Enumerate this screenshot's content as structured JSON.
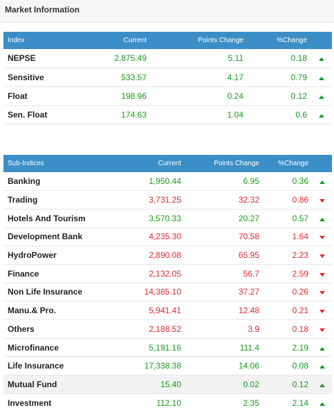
{
  "header": {
    "title": "Market Information"
  },
  "index_table": {
    "columns": [
      "Index",
      "Current",
      "Points Change",
      "%Change"
    ],
    "rows": [
      {
        "name": "NEPSE",
        "current": "2,875.49",
        "points": "5.11",
        "pct": "0.18",
        "direction": "up"
      },
      {
        "name": "Sensitive",
        "current": "533.57",
        "points": "4.17",
        "pct": "0.79",
        "direction": "up"
      },
      {
        "name": "Float",
        "current": "198.96",
        "points": "0.24",
        "pct": "0.12",
        "direction": "up"
      },
      {
        "name": "Sen. Float",
        "current": "174.63",
        "points": "1.04",
        "pct": "0.6",
        "direction": "up"
      }
    ]
  },
  "subindex_table": {
    "columns": [
      "Sub-Indices",
      "Current",
      "Points Change",
      "%Change"
    ],
    "rows": [
      {
        "name": "Banking",
        "current": "1,950.44",
        "points": "6.95",
        "pct": "0.36",
        "direction": "up"
      },
      {
        "name": "Trading",
        "current": "3,731.25",
        "points": "32.32",
        "pct": "0.86",
        "direction": "down"
      },
      {
        "name": "Hotels And Tourism",
        "current": "3,570.33",
        "points": "20.27",
        "pct": "0.57",
        "direction": "up"
      },
      {
        "name": "Development Bank",
        "current": "4,235.30",
        "points": "70.58",
        "pct": "1.64",
        "direction": "down"
      },
      {
        "name": "HydroPower",
        "current": "2,890.08",
        "points": "65.95",
        "pct": "2.23",
        "direction": "down"
      },
      {
        "name": "Finance",
        "current": "2,132.05",
        "points": "56.7",
        "pct": "2.59",
        "direction": "down"
      },
      {
        "name": "Non Life Insurance",
        "current": "14,385.10",
        "points": "37.27",
        "pct": "0.26",
        "direction": "down"
      },
      {
        "name": "Manu.& Pro.",
        "current": "5,941.41",
        "points": "12.48",
        "pct": "0.21",
        "direction": "down"
      },
      {
        "name": "Others",
        "current": "2,188.52",
        "points": "3.9",
        "pct": "0.18",
        "direction": "down"
      },
      {
        "name": "Microfinance",
        "current": "5,191.16",
        "points": "111.4",
        "pct": "2.19",
        "direction": "up"
      },
      {
        "name": "Life Insurance",
        "current": "17,338.38",
        "points": "14.06",
        "pct": "0.08",
        "direction": "up"
      },
      {
        "name": "Mutual Fund",
        "current": "15.40",
        "points": "0.02",
        "pct": "0.12",
        "direction": "up"
      },
      {
        "name": "Investment",
        "current": "112.10",
        "points": "2.35",
        "pct": "2.14",
        "direction": "up"
      }
    ]
  },
  "colors": {
    "header_bg": "#3b8fc6",
    "up": "#1a9a1a",
    "down": "#e0282c"
  }
}
